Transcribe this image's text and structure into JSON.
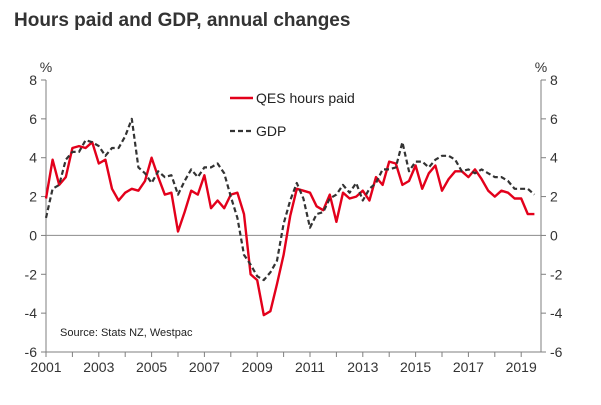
{
  "chart_data": {
    "type": "line",
    "title": "Hours paid and GDP, annual changes",
    "left_unit": "%",
    "right_unit": "%",
    "ylim": [
      -6,
      8
    ],
    "yticks": [
      -6,
      -4,
      -2,
      0,
      2,
      4,
      6,
      8
    ],
    "ytick_labels": [
      "-6",
      "-4",
      "-2",
      "0",
      "2",
      "4",
      "6",
      "8"
    ],
    "xlim": [
      2001.0,
      2019.75
    ],
    "xticks": [
      2001,
      2003,
      2005,
      2007,
      2009,
      2011,
      2013,
      2015,
      2017,
      2019
    ],
    "xtick_labels": [
      "2001",
      "2003",
      "2005",
      "2007",
      "2009",
      "2011",
      "2013",
      "2015",
      "2017",
      "2019"
    ],
    "source": "Source: Stats NZ, Westpac",
    "legend": [
      "QES hours paid",
      "GDP"
    ],
    "series": [
      {
        "name": "QES hours paid",
        "color": "#e3001b",
        "style": "solid",
        "x": [
          2001.0,
          2001.25,
          2001.5,
          2001.75,
          2002.0,
          2002.25,
          2002.5,
          2002.75,
          2003.0,
          2003.25,
          2003.5,
          2003.75,
          2004.0,
          2004.25,
          2004.5,
          2004.75,
          2005.0,
          2005.25,
          2005.5,
          2005.75,
          2006.0,
          2006.25,
          2006.5,
          2006.75,
          2007.0,
          2007.25,
          2007.5,
          2007.75,
          2008.0,
          2008.25,
          2008.5,
          2008.75,
          2009.0,
          2009.25,
          2009.5,
          2009.75,
          2010.0,
          2010.25,
          2010.5,
          2010.75,
          2011.0,
          2011.25,
          2011.5,
          2011.75,
          2012.0,
          2012.25,
          2012.5,
          2012.75,
          2013.0,
          2013.25,
          2013.5,
          2013.75,
          2014.0,
          2014.25,
          2014.5,
          2014.75,
          2015.0,
          2015.25,
          2015.5,
          2015.75,
          2016.0,
          2016.25,
          2016.5,
          2016.75,
          2017.0,
          2017.25,
          2017.5,
          2017.75,
          2018.0,
          2018.25,
          2018.5,
          2018.75,
          2019.0,
          2019.25,
          2019.5
        ],
        "values": [
          1.9,
          3.9,
          2.6,
          3.0,
          4.5,
          4.6,
          4.5,
          4.8,
          3.7,
          3.9,
          2.4,
          1.8,
          2.2,
          2.4,
          2.3,
          2.8,
          4.0,
          3.0,
          2.1,
          2.2,
          0.2,
          1.2,
          2.3,
          2.1,
          3.1,
          1.4,
          1.8,
          1.4,
          2.1,
          2.2,
          1.1,
          -2.0,
          -2.3,
          -4.1,
          -3.9,
          -2.5,
          -1.0,
          1.0,
          2.4,
          2.3,
          2.2,
          1.5,
          1.3,
          2.1,
          0.7,
          2.2,
          1.9,
          2.0,
          2.3,
          1.8,
          3.0,
          2.6,
          3.8,
          3.7,
          2.6,
          2.8,
          3.6,
          2.4,
          3.2,
          3.6,
          2.3,
          2.9,
          3.3,
          3.3,
          3.0,
          3.4,
          2.9,
          2.3,
          2.0,
          2.3,
          2.2,
          1.9,
          1.9,
          1.1,
          1.1
        ]
      },
      {
        "name": "GDP",
        "color": "#333333",
        "style": "dashed",
        "x": [
          2001.0,
          2001.25,
          2001.5,
          2001.75,
          2002.0,
          2002.25,
          2002.5,
          2002.75,
          2003.0,
          2003.25,
          2003.5,
          2003.75,
          2004.0,
          2004.25,
          2004.5,
          2004.75,
          2005.0,
          2005.25,
          2005.5,
          2005.75,
          2006.0,
          2006.25,
          2006.5,
          2006.75,
          2007.0,
          2007.25,
          2007.5,
          2007.75,
          2008.0,
          2008.25,
          2008.5,
          2008.75,
          2009.0,
          2009.25,
          2009.5,
          2009.75,
          2010.0,
          2010.25,
          2010.5,
          2010.75,
          2011.0,
          2011.25,
          2011.5,
          2011.75,
          2012.0,
          2012.25,
          2012.5,
          2012.75,
          2013.0,
          2013.25,
          2013.5,
          2013.75,
          2014.0,
          2014.25,
          2014.5,
          2014.75,
          2015.0,
          2015.25,
          2015.5,
          2015.75,
          2016.0,
          2016.25,
          2016.5,
          2016.75,
          2017.0,
          2017.25,
          2017.5,
          2017.75,
          2018.0,
          2018.25,
          2018.5,
          2018.75,
          2019.0,
          2019.25,
          2019.5
        ],
        "values": [
          0.9,
          2.4,
          2.6,
          3.9,
          4.3,
          4.3,
          4.9,
          4.8,
          4.6,
          4.1,
          4.5,
          4.5,
          5.1,
          6.0,
          3.5,
          3.2,
          2.7,
          3.3,
          3.0,
          3.1,
          2.1,
          2.8,
          3.4,
          3.0,
          3.5,
          3.5,
          3.7,
          3.2,
          2.0,
          0.9,
          -1.0,
          -1.5,
          -2.1,
          -2.3,
          -1.9,
          -1.3,
          0.6,
          1.8,
          2.7,
          1.9,
          0.4,
          1.1,
          1.2,
          1.9,
          2.1,
          2.6,
          2.2,
          2.7,
          1.8,
          2.4,
          2.7,
          3.4,
          3.4,
          3.5,
          4.8,
          3.3,
          3.8,
          3.8,
          3.5,
          3.9,
          4.1,
          4.1,
          3.9,
          3.3,
          3.4,
          3.2,
          3.4,
          3.2,
          3.0,
          3.0,
          2.8,
          2.4,
          2.4,
          2.4,
          2.1
        ]
      }
    ]
  }
}
